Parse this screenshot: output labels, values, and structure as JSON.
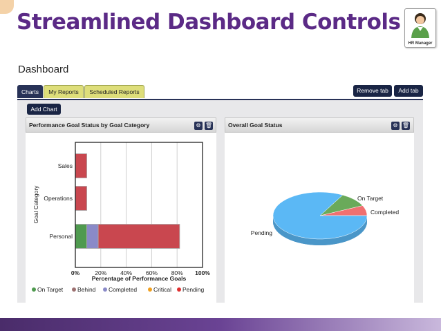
{
  "slide": {
    "title": "Streamlined Dashboard Controls"
  },
  "persona": {
    "label": "HR Manager"
  },
  "dashboard": {
    "title": "Dashboard"
  },
  "tabs": [
    {
      "label": "Charts",
      "active": true
    },
    {
      "label": "My Reports",
      "active": false
    },
    {
      "label": "Scheduled Reports",
      "active": false
    }
  ],
  "toolbar": {
    "remove_tab": "Remove tab",
    "add_tab": "Add tab",
    "add_chart": "Add Chart"
  },
  "panels": {
    "left": {
      "title": "Performance Goal Status by Goal Category",
      "settings_icon": "gear-icon",
      "delete_icon": "trash-icon"
    },
    "right": {
      "title": "Overall Goal Status",
      "settings_icon": "gear-icon",
      "delete_icon": "trash-icon"
    }
  },
  "colors": {
    "on_target": "#4f9a4f",
    "behind": "#9c7070",
    "completed": "#8a8ac8",
    "critical": "#f0a020",
    "pending": "#e03030",
    "bar_pending": "#c9474f",
    "pie_pending": "#5bb8f5",
    "pie_on_target": "#6aaa5a",
    "pie_completed": "#f07070"
  },
  "chart_data": [
    {
      "type": "bar",
      "orientation": "horizontal",
      "stacked": true,
      "categories": [
        "Sales",
        "Operations",
        "Personal"
      ],
      "series": [
        {
          "name": "On Target",
          "values": [
            0,
            0,
            9
          ]
        },
        {
          "name": "Behind",
          "values": [
            0,
            0,
            0
          ]
        },
        {
          "name": "Completed",
          "values": [
            0,
            0,
            9
          ]
        },
        {
          "name": "Critical",
          "values": [
            0,
            0,
            0
          ]
        },
        {
          "name": "Pending",
          "values": [
            9,
            9,
            64
          ]
        }
      ],
      "xlabel": "Percentage of Performance Goals",
      "ylabel": "Goal Category",
      "xlim": [
        0,
        100
      ],
      "xticks": [
        "0%",
        "20%",
        "40%",
        "60%",
        "80%",
        "100%"
      ],
      "grid": "vertical",
      "legend": "bottom"
    },
    {
      "type": "pie",
      "slices": [
        {
          "label": "Pending",
          "value": 83
        },
        {
          "label": "On Target",
          "value": 10
        },
        {
          "label": "Completed",
          "value": 7
        }
      ]
    }
  ]
}
